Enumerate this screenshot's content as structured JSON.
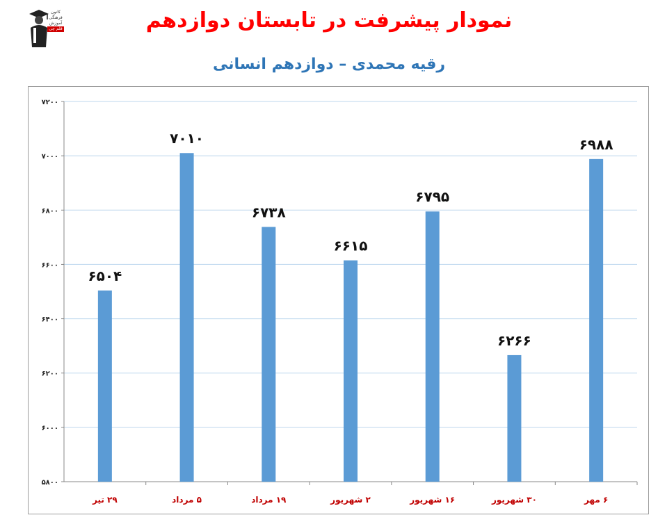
{
  "header": {
    "title": "نمودار پیشرفت در تابستان دوازدهم",
    "subtitle": "رقیه محمدی – دوازدهم انسانی"
  },
  "logo": {
    "line1": "کانون",
    "line2": "فرهنگی",
    "line3": "آموزش",
    "line4": "قلم چی"
  },
  "colors": {
    "title": "#ff0000",
    "subtitle": "#2e75b6",
    "bar": "#5b9bd5",
    "grid": "#bdd7ee",
    "category_label": "#c00000"
  },
  "chart_data": {
    "type": "bar",
    "categories": [
      "۲۹ تیر",
      "۵ مرداد",
      "۱۹ مرداد",
      "۲ شهریور",
      "۱۶ شهریور",
      "۳۰ شهریور",
      "۶ مهر"
    ],
    "values": [
      6504,
      7010,
      6738,
      6615,
      6795,
      6266,
      6988
    ],
    "value_labels": [
      "۶۵۰۴",
      "۷۰۱۰",
      "۶۷۳۸",
      "۶۶۱۵",
      "۶۷۹۵",
      "۶۲۶۶",
      "۶۹۸۸"
    ],
    "ylim": [
      5800,
      7200
    ],
    "yticks": [
      5800,
      6000,
      6200,
      6400,
      6600,
      6800,
      7000,
      7200
    ],
    "ytick_labels": [
      "۵۸۰۰",
      "۶۰۰۰",
      "۶۲۰۰",
      "۶۴۰۰",
      "۶۶۰۰",
      "۶۸۰۰",
      "۷۰۰۰",
      "۷۲۰۰"
    ],
    "grid": true,
    "legend": "none"
  }
}
